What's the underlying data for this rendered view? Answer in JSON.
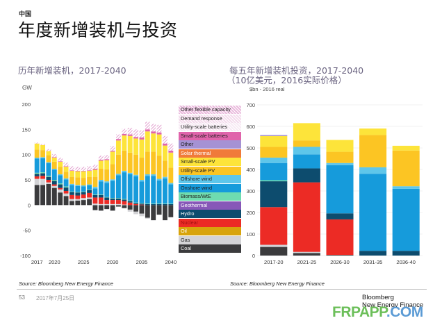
{
  "header": {
    "region": "中国",
    "title": "年度新增装机与投资"
  },
  "left_panel": {
    "title": "历年新增装机，2017-2040",
    "source": "Source: Bloomberg New Energy Finance"
  },
  "right_panel": {
    "title_line1": "每五年新增装机投资，2017-2040",
    "title_line2": "（10亿美元，2016实际价格）",
    "source": "Source: Bloomberg New Energy Finance"
  },
  "footer": {
    "page_number": "53",
    "date": "2017年7月25日",
    "logo_line1": "Bloomberg",
    "logo_line2": "New Energy Finance",
    "watermark_a": "FRPAPP",
    "watermark_b": ".COM"
  },
  "legend": [
    {
      "name": "Other flexible capacity",
      "color": "#e9b9dc",
      "text": "#222",
      "pattern": true
    },
    {
      "name": "Demand response",
      "color": "#f3dbec",
      "text": "#222",
      "pattern": true
    },
    {
      "name": "Utility-scale batteries",
      "color": "#f7eaf4",
      "text": "#222",
      "pattern": true
    },
    {
      "name": "Small-scale batteries",
      "color": "#e064ab",
      "text": "#222",
      "pattern": false
    },
    {
      "name": "Other",
      "color": "#a592d4",
      "text": "#222",
      "pattern": false
    },
    {
      "name": "Solar thermal",
      "color": "#f07a3a",
      "text": "#fff",
      "pattern": false
    },
    {
      "name": "Small-scale PV",
      "color": "#fde43a",
      "text": "#222",
      "pattern": false
    },
    {
      "name": "Utility-scale PV",
      "color": "#fcc523",
      "text": "#222",
      "pattern": false
    },
    {
      "name": "Offshore wind",
      "color": "#5ec6ea",
      "text": "#222",
      "pattern": false
    },
    {
      "name": "Onshore wind",
      "color": "#169bdb",
      "text": "#222",
      "pattern": false
    },
    {
      "name": "Biomass/WtE",
      "color": "#6fdcb0",
      "text": "#222",
      "pattern": false
    },
    {
      "name": "Geothermal",
      "color": "#8757b8",
      "text": "#fff",
      "pattern": false
    },
    {
      "name": "Hydro",
      "color": "#0d4c6e",
      "text": "#fff",
      "pattern": false
    },
    {
      "name": "Nuclear",
      "color": "#ec2b25",
      "text": "#a01010",
      "pattern": false
    },
    {
      "name": "Oil",
      "color": "#d8a40c",
      "text": "#fff",
      "pattern": false
    },
    {
      "name": "Gas",
      "color": "#d3d3d6",
      "text": "#222",
      "pattern": false
    },
    {
      "name": "Coal",
      "color": "#3b3b3d",
      "text": "#fff",
      "pattern": false
    }
  ],
  "chart_data": [
    {
      "type": "bar",
      "stacked": true,
      "title": "历年新增装机，2017-2040",
      "ylabel": "GW",
      "xlabel": "",
      "ylim": [
        -100,
        200
      ],
      "yticks": [
        200,
        150,
        100,
        50,
        0,
        -50,
        -100
      ],
      "xtick_labels": [
        "2017",
        "2020",
        "2025",
        "2030",
        "2035",
        "2040"
      ],
      "grid": true,
      "legend_position": "right",
      "categories": [
        "2017",
        "2018",
        "2019",
        "2020",
        "2021",
        "2022",
        "2023",
        "2024",
        "2025",
        "2026",
        "2027",
        "2028",
        "2029",
        "2030",
        "2031",
        "2032",
        "2033",
        "2034",
        "2035",
        "2036",
        "2037",
        "2038",
        "2039",
        "2040"
      ],
      "series": [
        {
          "name": "Coal",
          "values": [
            40,
            40,
            42,
            34,
            25,
            18,
            8,
            9,
            10,
            12,
            -10,
            -11,
            -8,
            -11,
            -3,
            -6,
            -9,
            -13,
            -17,
            -25,
            -30,
            -19,
            -30,
            -24
          ]
        },
        {
          "name": "Gas",
          "values": [
            12,
            12,
            3,
            4,
            6,
            5,
            4,
            3,
            4,
            3,
            3,
            2,
            2,
            2,
            2,
            1,
            -4,
            -5,
            -5,
            -2,
            0,
            0,
            0,
            0
          ]
        },
        {
          "name": "Oil",
          "values": [
            0,
            0,
            0,
            0,
            0,
            0,
            0,
            0,
            0,
            0,
            0,
            0,
            0,
            0,
            0,
            0,
            0,
            0,
            0,
            0,
            0,
            0,
            0,
            0
          ]
        },
        {
          "name": "Nuclear",
          "values": [
            5,
            6,
            5,
            3,
            3,
            5,
            8,
            7,
            7,
            9,
            12,
            13,
            8,
            8,
            8,
            7,
            5,
            2,
            1,
            0,
            0,
            0,
            0,
            0
          ]
        },
        {
          "name": "Hydro",
          "values": [
            5,
            5,
            6,
            7,
            7,
            7,
            6,
            6,
            5,
            6,
            5,
            5,
            5,
            3,
            3,
            3,
            3,
            2,
            2,
            2,
            2,
            2,
            2,
            2
          ]
        },
        {
          "name": "Geothermal",
          "values": [
            0,
            0,
            0,
            0,
            0,
            0,
            0,
            0,
            0,
            0,
            0,
            0,
            0,
            0,
            0,
            0,
            0,
            0,
            0,
            0,
            0,
            0,
            0,
            0
          ]
        },
        {
          "name": "Biomass/WtE",
          "values": [
            2,
            2,
            2,
            2,
            2,
            2,
            1,
            1,
            1,
            1,
            1,
            1,
            1,
            1,
            1,
            1,
            1,
            1,
            1,
            1,
            1,
            1,
            1,
            1
          ]
        },
        {
          "name": "Onshore wind",
          "values": [
            28,
            28,
            25,
            20,
            16,
            14,
            13,
            12,
            10,
            8,
            12,
            26,
            28,
            34,
            45,
            53,
            52,
            52,
            43,
            55,
            55,
            46,
            50,
            38
          ]
        },
        {
          "name": "Offshore wind",
          "values": [
            2,
            2,
            2,
            2,
            2,
            2,
            2,
            2,
            2,
            2,
            3,
            3,
            3,
            3,
            3,
            3,
            3,
            3,
            3,
            3,
            3,
            3,
            3,
            3
          ]
        },
        {
          "name": "Utility-scale PV",
          "values": [
            16,
            14,
            14,
            14,
            15,
            13,
            14,
            15,
            15,
            15,
            20,
            22,
            24,
            30,
            38,
            40,
            40,
            40,
            44,
            45,
            45,
            46,
            32,
            30
          ]
        },
        {
          "name": "Small-scale PV",
          "values": [
            12,
            10,
            8,
            8,
            10,
            10,
            12,
            12,
            13,
            12,
            14,
            16,
            18,
            25,
            28,
            30,
            33,
            32,
            36,
            40,
            36,
            42,
            30,
            30
          ]
        },
        {
          "name": "Solar thermal",
          "values": [
            0,
            0,
            0,
            0,
            0,
            0,
            0,
            0,
            0,
            0,
            0,
            0,
            0,
            0,
            0,
            0,
            0,
            0,
            0,
            0,
            0,
            0,
            0,
            0
          ]
        },
        {
          "name": "Other",
          "values": [
            0,
            0,
            0,
            0,
            0,
            0,
            0,
            0,
            0,
            0,
            0,
            0,
            0,
            0,
            0,
            0,
            0,
            0,
            0,
            0,
            0,
            0,
            0,
            0
          ]
        },
        {
          "name": "Small-scale batteries",
          "values": [
            0,
            0,
            0,
            1,
            1,
            1,
            1,
            1,
            1,
            1,
            2,
            2,
            2,
            2,
            3,
            3,
            3,
            3,
            4,
            4,
            4,
            4,
            4,
            4
          ]
        },
        {
          "name": "Utility-scale batteries",
          "values": [
            0,
            0,
            0,
            0,
            0,
            0,
            0,
            0,
            0,
            0,
            0,
            0,
            0,
            0,
            0,
            0,
            0,
            0,
            0,
            0,
            0,
            0,
            0,
            0
          ]
        },
        {
          "name": "Demand response",
          "values": [
            1,
            1,
            2,
            3,
            3,
            3,
            4,
            4,
            4,
            4,
            4,
            4,
            4,
            4,
            4,
            5,
            5,
            6,
            6,
            6,
            6,
            6,
            6,
            6
          ]
        },
        {
          "name": "Other flexible capacity",
          "values": [
            1,
            1,
            2,
            3,
            4,
            4,
            4,
            4,
            4,
            4,
            4,
            4,
            4,
            5,
            5,
            5,
            8,
            9,
            8,
            9,
            9,
            9,
            9,
            8
          ]
        }
      ]
    },
    {
      "type": "bar",
      "stacked": true,
      "title": "每五年新增装机投资，2017-2040（10亿美元，2016实际价格）",
      "ylabel": "$bn - 2016 real",
      "xlabel": "",
      "ylim": [
        0,
        700
      ],
      "yticks": [
        700,
        600,
        500,
        400,
        300,
        200,
        100,
        0
      ],
      "grid": true,
      "categories": [
        "2017-20",
        "2021-25",
        "2026-30",
        "2031-35",
        "2036-40"
      ],
      "series": [
        {
          "name": "Coal",
          "values": [
            40,
            12,
            3,
            0,
            0
          ]
        },
        {
          "name": "Gas",
          "values": [
            10,
            5,
            0,
            0,
            0
          ]
        },
        {
          "name": "Oil",
          "values": [
            0,
            0,
            0,
            0,
            0
          ]
        },
        {
          "name": "Nuclear",
          "values": [
            175,
            323,
            165,
            0,
            0
          ]
        },
        {
          "name": "Hydro",
          "values": [
            120,
            65,
            28,
            22,
            22
          ]
        },
        {
          "name": "Geothermal",
          "values": [
            0,
            0,
            0,
            0,
            0
          ]
        },
        {
          "name": "Biomass/WtE",
          "values": [
            5,
            0,
            0,
            0,
            0
          ]
        },
        {
          "name": "Onshore wind",
          "values": [
            80,
            65,
            224,
            358,
            288
          ]
        },
        {
          "name": "Offshore wind",
          "values": [
            25,
            35,
            10,
            30,
            12
          ]
        },
        {
          "name": "Utility-scale PV",
          "values": [
            50,
            30,
            52,
            150,
            166
          ]
        },
        {
          "name": "Small-scale PV",
          "values": [
            50,
            80,
            55,
            30,
            22
          ]
        },
        {
          "name": "Other",
          "values": [
            5,
            0,
            0,
            0,
            0
          ]
        }
      ]
    }
  ]
}
